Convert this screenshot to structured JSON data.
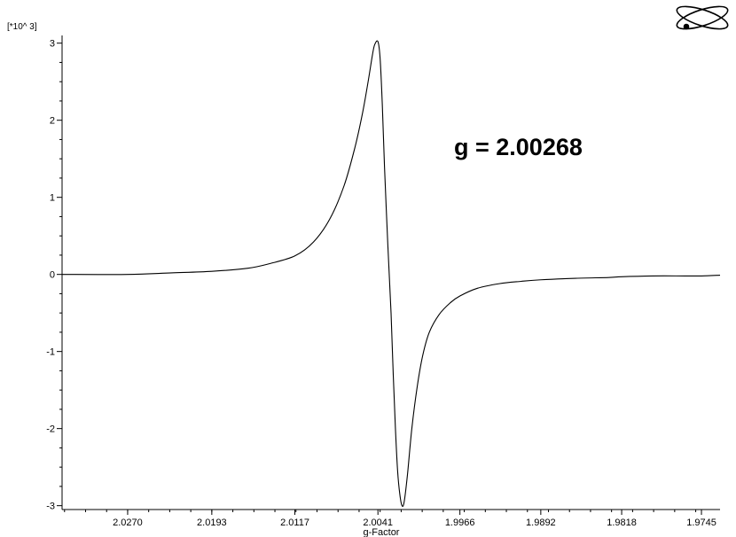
{
  "chart_data": {
    "type": "line",
    "scale_label": "[*10^ 3]",
    "xlabel": "g-Factor",
    "ylabel": "",
    "annotation": "g = 2.00268",
    "grid": false,
    "xlim": [
      2.033,
      1.9728
    ],
    "x_reversed": true,
    "ylim": [
      -3.05,
      3.1
    ],
    "x_ticks": [
      {
        "value": 2.027,
        "label": "2.0270"
      },
      {
        "value": 2.0193,
        "label": "2.0193"
      },
      {
        "value": 2.0117,
        "label": "2.0117"
      },
      {
        "value": 2.0041,
        "label": "2.0041"
      },
      {
        "value": 1.9966,
        "label": "1.9966"
      },
      {
        "value": 1.9892,
        "label": "1.9892"
      },
      {
        "value": 1.9818,
        "label": "1.9818"
      },
      {
        "value": 1.9745,
        "label": "1.9745"
      }
    ],
    "y_ticks": [
      {
        "value": 3,
        "label": "3"
      },
      {
        "value": 2,
        "label": "2"
      },
      {
        "value": 1,
        "label": "1"
      },
      {
        "value": 0,
        "label": "0"
      },
      {
        "value": -1,
        "label": "-1"
      },
      {
        "value": -2,
        "label": "-2"
      },
      {
        "value": -3,
        "label": "-3"
      }
    ],
    "series": [
      {
        "color": "#000000",
        "x": [
          2.033,
          2.027,
          2.023,
          2.0193,
          2.016,
          2.014,
          2.0117,
          2.01,
          2.0085,
          2.0072,
          2.0062,
          2.0055,
          2.005,
          2.0046,
          2.0044,
          2.0041,
          2.0039,
          2.0037,
          2.0035,
          2.0032,
          2.0029,
          2.0027,
          2.0025,
          2.0023,
          2.0021,
          2.0019,
          2.0017,
          2.0014,
          2.001,
          2.0005,
          2.0,
          1.9994,
          1.9985,
          1.9975,
          1.9966,
          1.995,
          1.993,
          1.991,
          1.9892,
          1.986,
          1.983,
          1.9818,
          1.979,
          1.976,
          1.9745,
          1.9728
        ],
        "y": [
          0.0,
          0.0,
          0.02,
          0.04,
          0.08,
          0.14,
          0.24,
          0.42,
          0.72,
          1.15,
          1.65,
          2.1,
          2.5,
          2.85,
          2.98,
          3.02,
          2.8,
          2.2,
          1.4,
          0.4,
          -0.5,
          -1.3,
          -2.0,
          -2.55,
          -2.85,
          -3.0,
          -2.95,
          -2.6,
          -2.0,
          -1.45,
          -1.05,
          -0.75,
          -0.52,
          -0.37,
          -0.28,
          -0.18,
          -0.12,
          -0.09,
          -0.07,
          -0.05,
          -0.04,
          -0.03,
          -0.02,
          -0.02,
          -0.02,
          -0.01
        ]
      }
    ]
  }
}
